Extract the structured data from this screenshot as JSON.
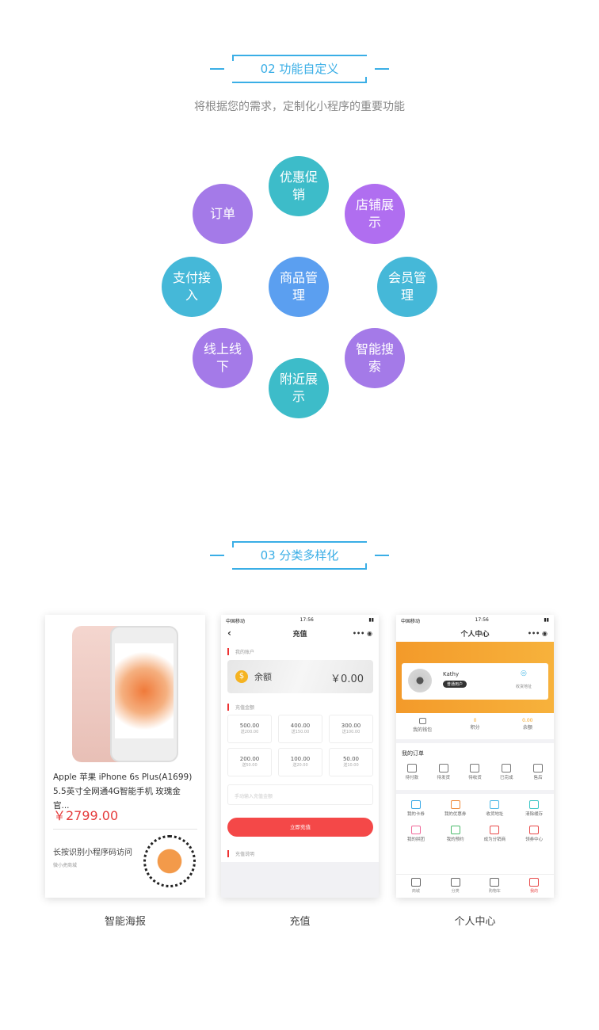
{
  "section2": {
    "title": "02 功能自定义",
    "subtitle": "将根据您的需求，定制化小程序的重要功能",
    "features": [
      {
        "label": "优惠促销",
        "color": "#3dbcc9"
      },
      {
        "label": "订单",
        "color": "#a47ae8"
      },
      {
        "label": "店铺展示",
        "color": "#b06ef0"
      },
      {
        "label": "支付接入",
        "color": "#45b8d8"
      },
      {
        "label": "商品管理",
        "color": "#5b9ff0"
      },
      {
        "label": "会员管理",
        "color": "#45b8d8"
      },
      {
        "label": "线上线下",
        "color": "#a47ae8"
      },
      {
        "label": "智能搜索",
        "color": "#a47ae8"
      },
      {
        "label": "附近展示",
        "color": "#3dbcc9"
      }
    ]
  },
  "section3": {
    "title": "03 分类多样化"
  },
  "poster": {
    "caption": "智能海报",
    "product_name": "Apple 苹果 iPhone 6s Plus(A1699) 5.5英寸全网通4G智能手机 玫瑰金 官...",
    "price": "￥2799.00",
    "qr_hint": "长按识别小程序码访问",
    "shop": "微小虎商城"
  },
  "recharge": {
    "caption": "充值",
    "status_carrier": "中国移动",
    "time": "17:56",
    "nav_title": "充值",
    "account_label": "我的账户",
    "balance_label": "余额",
    "balance": "￥0.00",
    "amount_label": "充值金额",
    "amounts": [
      {
        "v": "500.00",
        "g": "送200.00"
      },
      {
        "v": "400.00",
        "g": "送150.00"
      },
      {
        "v": "300.00",
        "g": "送100.00"
      },
      {
        "v": "200.00",
        "g": "送50.00"
      },
      {
        "v": "100.00",
        "g": "送20.00"
      },
      {
        "v": "50.00",
        "g": "送10.00"
      }
    ],
    "input_placeholder": "手动输入充值金额",
    "submit": "立即充值",
    "notes_label": "充值说明"
  },
  "profile": {
    "caption": "个人中心",
    "status_carrier": "中国移动",
    "time": "17:56",
    "nav_title": "个人中心",
    "user": "Kathy",
    "badge": "普通用户",
    "address": "收货地址",
    "wallet": "我的钱包",
    "points_value": "0",
    "points_label": "积分",
    "balance_value": "0.00",
    "balance_label": "余额",
    "orders_label": "我的订单",
    "orders": [
      "待付款",
      "待发货",
      "待收货",
      "已完成",
      "售后"
    ],
    "services": [
      "我的卡券",
      "我的优惠券",
      "收货地址",
      "清除缓存",
      "我的拼团",
      "我的预约",
      "成为分销商",
      "领券中心"
    ],
    "tabs": [
      "商城",
      "分类",
      "购物车",
      "我的"
    ],
    "accent": "#f39a2a"
  }
}
